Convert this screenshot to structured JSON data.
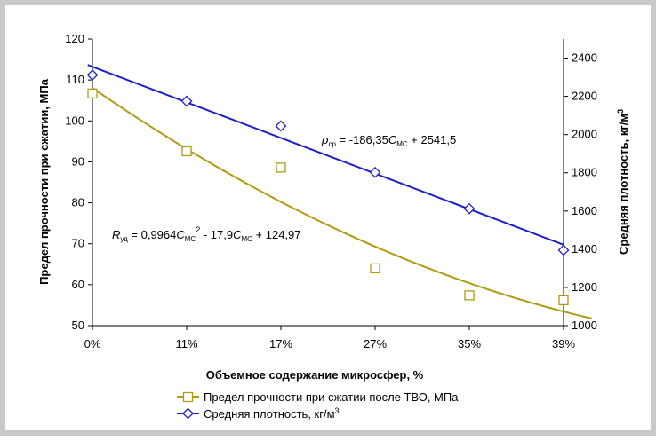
{
  "chart_data": {
    "type": "line",
    "categories": [
      "0%",
      "11%",
      "17%",
      "27%",
      "35%",
      "39%"
    ],
    "xlabel": "Объемное содержание микросфер, %",
    "ylabel": "Предел прочности при сжатии, МПа",
    "y2label": {
      "main": "Средняя плотность, кг/м",
      "sup": "3"
    },
    "ylim": [
      50,
      120
    ],
    "y_ticks": [
      50,
      60,
      70,
      80,
      90,
      100,
      110,
      120
    ],
    "y2lim": [
      1000,
      2500
    ],
    "y2_ticks": [
      1000,
      1200,
      1400,
      1600,
      1800,
      2000,
      2200,
      2400
    ],
    "grid": false,
    "legend_position": "bottom",
    "series": [
      {
        "name": "Предел прочности при сжатии после ТВО, МПа",
        "axis": "left",
        "marker": "square",
        "color": "#b09a10",
        "values": [
          106.7,
          92.6,
          88.6,
          64.0,
          57.4,
          56.2
        ],
        "trend": {
          "type": "polynomial",
          "coefficients": [
            124.97,
            -17.9,
            0.9964
          ],
          "x_start": 1,
          "x_end": 6.3
        }
      },
      {
        "name": "Средняя плотность, кг/м",
        "name_sup": "3",
        "axis": "right",
        "marker": "diamond",
        "color": "#1f1fc9",
        "values": [
          2312,
          2175,
          2045,
          1802,
          1612,
          1395
        ],
        "trend": {
          "type": "linear",
          "coefficients": [
            2541.5,
            -186.35
          ],
          "x_start": 0.95,
          "x_end": 6.0
        }
      }
    ],
    "annotations": {
      "density_eq": {
        "sym": "ρ",
        "sym_sub": "ср",
        "a": " = -186,35",
        "c1": "C",
        "c1_sub": "МС",
        "b": " + 2541,5"
      },
      "strength_eq": {
        "sym": "R",
        "sym_sub": "уд",
        "a": " = 0,9964",
        "c1": "C",
        "c1_sub": "МС",
        "sq": "2",
        "b": " - 17,9",
        "c2": "C",
        "c2_sub": "МС",
        "c": " + 124,97"
      }
    }
  }
}
